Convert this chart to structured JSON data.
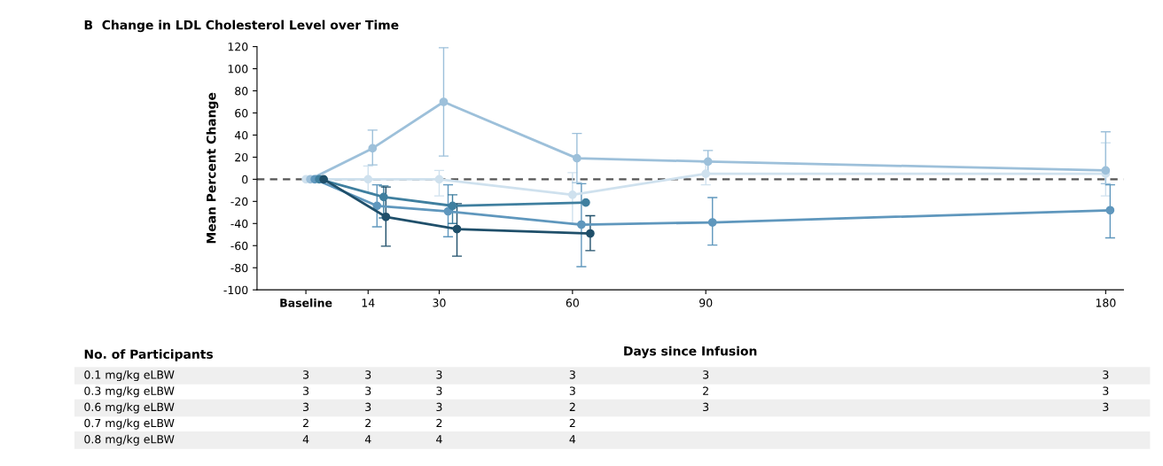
{
  "chart_data": [
    {
      "type": "line",
      "title": "B  Change in LDL Cholesterol Level over Time",
      "xlabel": "Days since Infusion",
      "ylabel": "Mean Percent Change",
      "xlim": [
        -11,
        184
      ],
      "xticks": [
        {
          "value": 0,
          "label": "Baseline"
        },
        14,
        30,
        60,
        90,
        180
      ],
      "ylim": [
        -100,
        120
      ],
      "yticks": [
        -100,
        -80,
        -60,
        -40,
        -20,
        0,
        20,
        40,
        60,
        80,
        100,
        120
      ],
      "grid": false,
      "legend": false,
      "marker": "circle",
      "line_style": "solid",
      "ref_lines": [
        {
          "axis": "y",
          "value": 0,
          "color": "#555555",
          "line_style": "dashed"
        }
      ],
      "series": [
        {
          "color": "#cfe1ee",
          "x": [
            0,
            14,
            30,
            60,
            90,
            180
          ],
          "values": [
            0,
            0,
            0,
            -14,
            5,
            5
          ],
          "errors": [
            null,
            [
              -12,
              12
            ],
            [
              -15,
              8
            ],
            [
              -40,
              6
            ],
            [
              -5,
              15
            ],
            [
              -15,
              33
            ]
          ]
        },
        {
          "color": "#9dc0da",
          "x": [
            1,
            15,
            31,
            61,
            90.5,
            180
          ],
          "values": [
            0,
            28,
            70,
            19,
            16,
            8
          ],
          "errors": [
            null,
            [
              13,
              44.5
            ],
            [
              21,
              119
            ],
            [
              -3,
              41.5
            ],
            [
              5,
              26
            ],
            [
              -4,
              43
            ]
          ]
        },
        {
          "color": "#5f97bd",
          "x": [
            2,
            16,
            32,
            62,
            91.5,
            181
          ],
          "values": [
            0,
            -24,
            -29,
            -41,
            -39,
            -28
          ],
          "errors": [
            null,
            [
              -43,
              -5
            ],
            [
              -52,
              -5
            ],
            [
              -79,
              -4
            ],
            [
              -59.5,
              -16.5
            ],
            [
              -53,
              -5
            ]
          ]
        },
        {
          "color": "#3f7f9f",
          "x": [
            3,
            17.5,
            33,
            63
          ],
          "values": [
            0,
            -16,
            -24,
            -21
          ],
          "errors": [
            null,
            [
              -35,
              -6
            ],
            [
              -40,
              -14
            ],
            null
          ]
        },
        {
          "color": "#1f4f6a",
          "x": [
            4,
            18,
            34,
            64
          ],
          "values": [
            0,
            -34,
            -45,
            -49
          ],
          "errors": [
            null,
            [
              -60.5,
              -7
            ],
            [
              -69.5,
              -22
            ],
            [
              -64.5,
              -33
            ]
          ]
        }
      ]
    },
    {
      "type": "other",
      "title": "No. of Participants",
      "y_categories": [
        "0.1 mg/kg eLBW",
        "0.3 mg/kg eLBW",
        "0.6 mg/kg eLBW",
        "0.7 mg/kg eLBW",
        "0.8 mg/kg eLBW"
      ],
      "cell_labels": [
        [
          "3",
          "3",
          "3",
          "3",
          "3",
          "3"
        ],
        [
          "3",
          "3",
          "3",
          "3",
          "2",
          "3"
        ],
        [
          "3",
          "3",
          "3",
          "2",
          "3",
          "3"
        ],
        [
          "2",
          "2",
          "2",
          "2",
          null,
          null
        ],
        [
          "4",
          "4",
          "4",
          "4",
          null,
          null
        ]
      ]
    }
  ]
}
